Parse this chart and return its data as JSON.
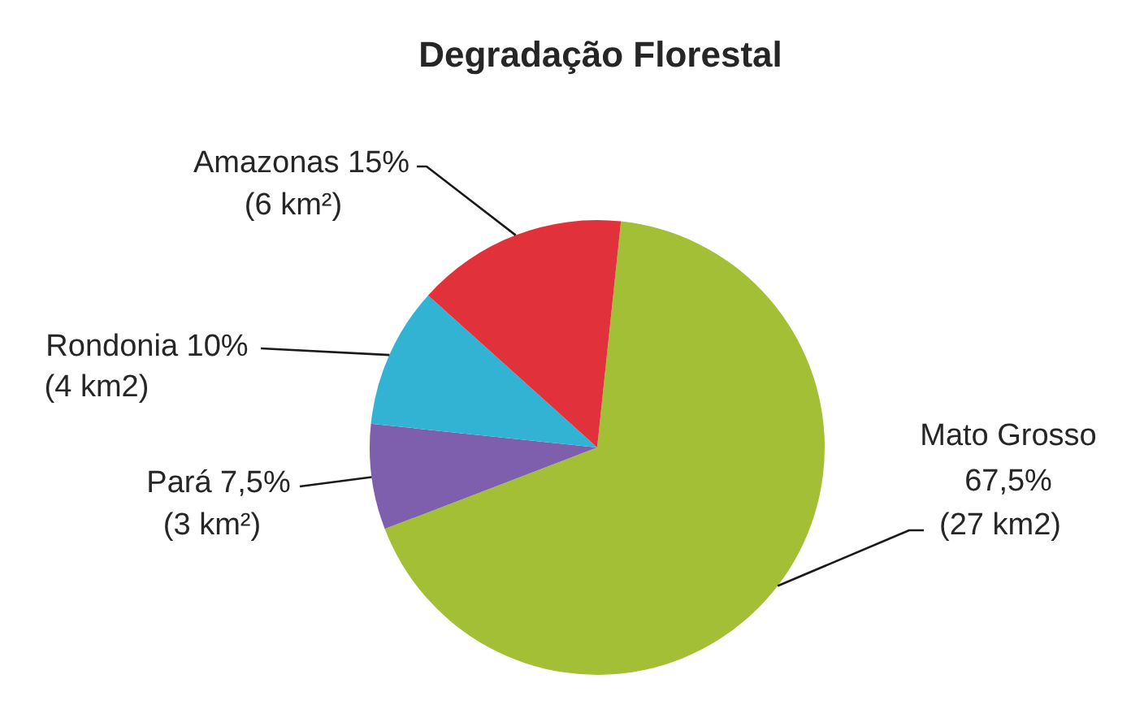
{
  "chart_data": {
    "type": "pie",
    "title": "Degradação Florestal",
    "categories": [
      "Mato Grosso",
      "Pará",
      "Rondonia",
      "Amazonas"
    ],
    "values": [
      67.5,
      7.5,
      10,
      15
    ],
    "colors": [
      "#a2bf36",
      "#7e5fae",
      "#33b3d3",
      "#e1323b"
    ],
    "value_labels": [
      "67,5%\n(27 km2)",
      "7,5%\n(3 km²)",
      "10%\n(4 km2)",
      "15%\n(6 km²)"
    ]
  }
}
